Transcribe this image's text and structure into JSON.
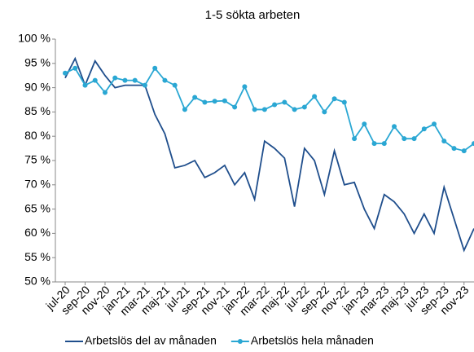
{
  "chart_data": {
    "type": "line",
    "title": "1-5 sökta arbeten",
    "categories": [
      "jul-20",
      null,
      "sep-20",
      null,
      "nov-20",
      null,
      "jan-21",
      null,
      "mar-21",
      null,
      "maj-21",
      null,
      "jul-21",
      null,
      "sep-21",
      null,
      "nov-21",
      null,
      "jan-22",
      null,
      "mar-22",
      null,
      "maj-22",
      null,
      "jul-22",
      null,
      "sep-22",
      null,
      "nov-22",
      null,
      "jan-23",
      null,
      "mar-23",
      null,
      "maj-23",
      null,
      "jul-23",
      null,
      "sep-23",
      null,
      "nov-23",
      null
    ],
    "series": [
      {
        "name": "Arbetslös del av månaden",
        "color": "#1f4e8c",
        "marker": "none",
        "values": [
          92,
          96,
          90.5,
          95.5,
          92.5,
          90,
          90.5,
          90.5,
          90.5,
          84.5,
          80.5,
          73.5,
          74,
          75,
          71.5,
          72.5,
          74,
          70,
          72.5,
          67,
          79,
          77.5,
          75.5,
          65.5,
          77.5,
          75,
          68,
          77,
          70,
          70.5,
          65,
          61,
          68,
          66.5,
          64,
          60,
          64,
          60,
          69.5,
          63,
          56.5,
          61
        ]
      },
      {
        "name": "Arbetslös hela månaden",
        "color": "#2aa7d3",
        "marker": "circle",
        "values": [
          93,
          94,
          90.5,
          91.5,
          89,
          92,
          91.5,
          91.5,
          90.5,
          94,
          91.5,
          90.5,
          85.5,
          88,
          87,
          87.2,
          87.3,
          86,
          90.2,
          85.5,
          85.5,
          86.5,
          87,
          85.5,
          86,
          88.2,
          85,
          87.7,
          87,
          79.5,
          82.5,
          78.5,
          78.5,
          82,
          79.5,
          79.5,
          81.5,
          82.5,
          79,
          77.5,
          77,
          78.5
        ]
      }
    ],
    "ylim": [
      50,
      100
    ],
    "yticks": [
      {
        "value": 50,
        "label": "50 %"
      },
      {
        "value": 55,
        "label": "55 %"
      },
      {
        "value": 60,
        "label": "60 %"
      },
      {
        "value": 65,
        "label": "65 %"
      },
      {
        "value": 70,
        "label": "70 %"
      },
      {
        "value": 75,
        "label": "75 %"
      },
      {
        "value": 80,
        "label": "80 %"
      },
      {
        "value": 85,
        "label": "85 %"
      },
      {
        "value": 90,
        "label": "90 %"
      },
      {
        "value": 95,
        "label": "95 %"
      },
      {
        "value": 100,
        "label": "100 %"
      }
    ],
    "grid": false,
    "legend": "bottom"
  }
}
